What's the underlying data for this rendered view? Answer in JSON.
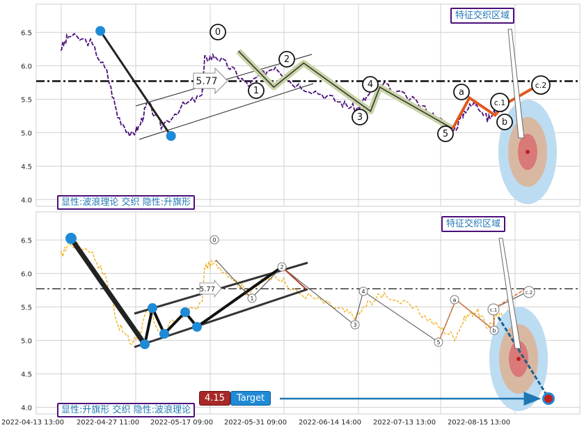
{
  "chart_data": [
    {
      "type": "line",
      "panel": "top",
      "ylim": [
        3.9,
        6.92
      ],
      "yticks": [
        "4.0",
        "4.5",
        "5.0",
        "5.5",
        "6.0",
        "6.5"
      ],
      "hline": 5.77,
      "price_color": "#4b0f7a",
      "label_bottom": "显性:波浪理论 交织 隐性:升旗形",
      "zone_label": "特征交织区域",
      "ref_value_label": "5.77",
      "wave_labels": [
        "0",
        "1",
        "2",
        "3",
        "4",
        "5",
        "a",
        "b",
        "c.1",
        "c.2"
      ],
      "wave_path": [
        {
          "x": 0.118,
          "y": 6.52
        },
        {
          "x": 0.248,
          "y": 4.95
        }
      ],
      "impulse": [
        {
          "x": 0.372,
          "y": 6.22
        },
        {
          "x": 0.437,
          "y": 5.68
        },
        {
          "x": 0.492,
          "y": 6.04
        },
        {
          "x": 0.615,
          "y": 5.32
        },
        {
          "x": 0.632,
          "y": 5.68
        },
        {
          "x": 0.766,
          "y": 5.06
        }
      ],
      "correction": [
        {
          "x": 0.766,
          "y": 5.06
        },
        {
          "x": 0.797,
          "y": 5.52
        },
        {
          "x": 0.844,
          "y": 5.26
        },
        {
          "x": 0.861,
          "y": 5.42
        },
        {
          "x": 0.93,
          "y": 5.74
        }
      ]
    },
    {
      "type": "line",
      "panel": "bottom",
      "ylim": [
        3.9,
        6.92
      ],
      "yticks": [
        "4.0",
        "4.5",
        "5.0",
        "5.5",
        "6.0",
        "6.5"
      ],
      "hline": 5.77,
      "price_color": "#f0b429",
      "label_bottom": "显性:升旗形 交织 隐性:波浪理论",
      "zone_label": "特征交织区域",
      "ref_value_label": "5.77",
      "wave_labels": [
        "0",
        "1",
        "2",
        "3",
        "4",
        "5",
        "a",
        "b",
        "c.1",
        "c.2"
      ],
      "current_price": "4.15",
      "target_label": "Target",
      "target_value": 4.15
    }
  ],
  "x_ticks": [
    "2022-04-13 13:00",
    "2022-04-27 11:00",
    "2022-05-17 09:00",
    "2022-05-31 09:00",
    "2022-06-14 14:00",
    "2022-07-13 13:00",
    "2022-08-15 13:00"
  ]
}
